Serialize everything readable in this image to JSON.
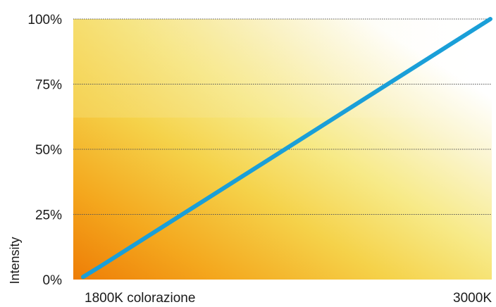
{
  "chart_data": {
    "type": "line",
    "ylabel": "Intensity",
    "y_ticks": [
      "0%",
      "25%",
      "50%",
      "75%",
      "100%"
    ],
    "x_tick_left": "1800K colorazione",
    "x_tick_right": "3000K",
    "ylim": [
      0,
      100
    ],
    "xlim": [
      1800,
      3000
    ],
    "grid": "horizontal dotted",
    "series": [
      {
        "x": [
          1800,
          1850,
          3000
        ],
        "values": [
          1,
          5,
          100
        ]
      }
    ],
    "colors": {
      "line": "#1a9fd8",
      "gradient_warm": "#f08a08",
      "gradient_mid": "#f7e070",
      "gradient_light": "#ffffff",
      "grid": "#555555"
    }
  }
}
